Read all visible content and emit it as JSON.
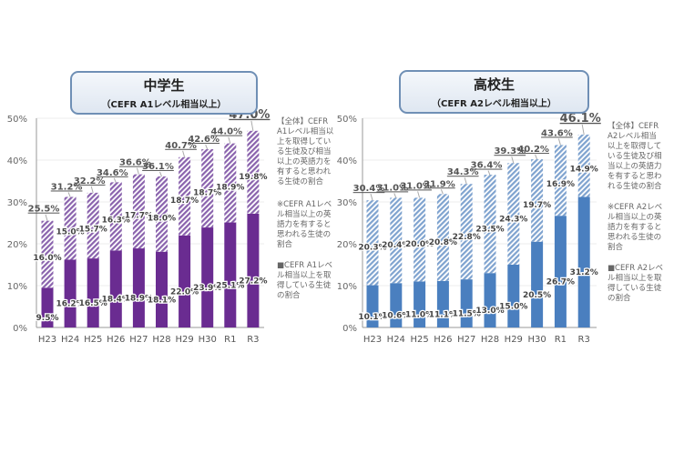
{
  "chart_data": [
    {
      "type": "bar",
      "stacked": true,
      "title": "中学生",
      "subtitle": "（CEFR A1レベル相当以上）",
      "categories": [
        "H23",
        "H24",
        "H25",
        "H26",
        "H27",
        "H28",
        "H29",
        "H30",
        "R1",
        "R3"
      ],
      "ylim": [
        0,
        50
      ],
      "yticks": [
        "0%",
        "10%",
        "20%",
        "30%",
        "40%",
        "50%"
      ],
      "series": [
        {
          "name": "■CEFR A1レベル相当以上を取得している生徒の割合",
          "values": [
            9.5,
            16.2,
            16.5,
            18.4,
            18.9,
            18.1,
            22.0,
            23.9,
            25.1,
            27.2
          ],
          "color": "#6a2c91"
        },
        {
          "name": "※CEFR A1レベル相当以上の英語力を有すると思われる生徒の割合",
          "values": [
            16.0,
            15.0,
            15.7,
            16.3,
            17.7,
            18.0,
            18.7,
            18.7,
            18.9,
            19.8
          ],
          "color": "#9b79b8"
        }
      ],
      "totals": [
        25.5,
        31.2,
        32.2,
        34.6,
        36.6,
        36.1,
        40.7,
        42.6,
        44.0,
        47.0
      ],
      "total_label": "【全体】CEFR A1レベル相当以上を取得している生徒及び相当以上の英語力を有すると思われる生徒の割合"
    },
    {
      "type": "bar",
      "stacked": true,
      "title": "高校生",
      "subtitle": "（CEFR A2レベル相当以上）",
      "categories": [
        "H23",
        "H24",
        "H25",
        "H26",
        "H27",
        "H28",
        "H29",
        "H30",
        "R1",
        "R3"
      ],
      "ylim": [
        0,
        50
      ],
      "yticks": [
        "0%",
        "10%",
        "20%",
        "30%",
        "40%",
        "50%"
      ],
      "series": [
        {
          "name": "■CEFR A2レベル相当以上を取得している生徒の割合",
          "values": [
            10.1,
            10.6,
            11.0,
            11.1,
            11.5,
            13.0,
            15.0,
            20.5,
            26.7,
            31.2
          ],
          "color": "#4a7fbf"
        },
        {
          "name": "※CEFR A2レベル相当以上の英語力を有すると思われる生徒の割合",
          "values": [
            20.3,
            20.4,
            20.0,
            20.8,
            22.8,
            23.5,
            24.3,
            19.7,
            16.9,
            14.9
          ],
          "color": "#8fb0d6"
        }
      ],
      "totals": [
        30.4,
        31.0,
        31.0,
        31.9,
        34.3,
        36.4,
        39.3,
        40.2,
        43.6,
        46.1
      ],
      "total_label": "【全体】CEFR A2レベル相当以上を取得している生徒及び相当以上の英語力を有すると思われる生徒の割合"
    }
  ]
}
